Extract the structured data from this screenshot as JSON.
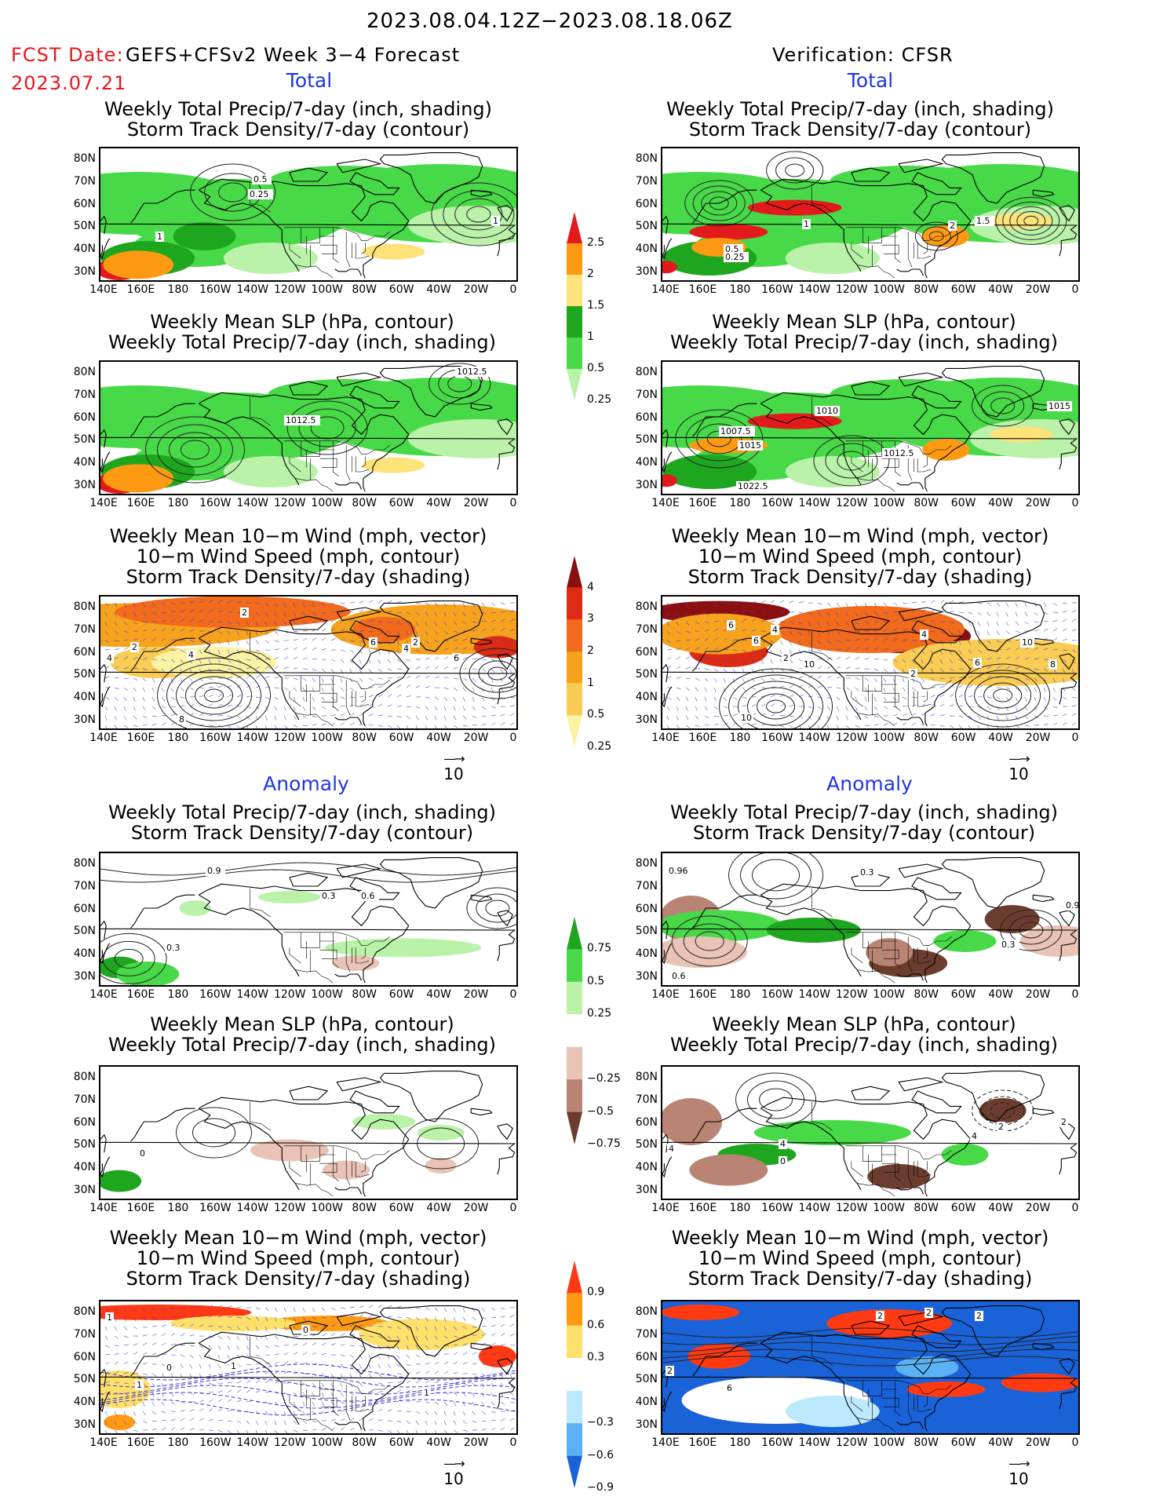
{
  "header": {
    "period": "2023.08.04.12Z−2023.08.18.06Z",
    "fcst_label": "FCST Date:",
    "fcst_date": "2023.07.21",
    "model": "GEFS+CFSv2 Week 3−4 Forecast",
    "verification": "Verification: CFSR"
  },
  "sections": {
    "total": "Total",
    "anomaly": "Anomaly"
  },
  "panel_titles": {
    "precip_storm": "Weekly Total Precip/7-day (inch, shading)\nStorm Track Density/7-day (contour)",
    "slp_precip": "Weekly Mean SLP (hPa, contour)\nWeekly Total Precip/7-day (inch, shading)",
    "wind": "Weekly Mean 10−m Wind (mph, vector)\n10−m Wind Speed (mph, contour)\nStorm Track Density/7-day (shading)"
  },
  "axes": {
    "lat_ticks": [
      "80N",
      "70N",
      "60N",
      "50N",
      "40N",
      "30N"
    ],
    "lon_ticks": [
      "140E",
      "160E",
      "180",
      "160W",
      "140W",
      "120W",
      "100W",
      "80W",
      "60W",
      "40W",
      "20W",
      "0"
    ]
  },
  "vector_ref": {
    "value": "10",
    "arrow": "—→"
  },
  "colorbars": {
    "precip_total": {
      "labels": [
        "2.5",
        "2",
        "1.5",
        "1",
        "0.5",
        "0.25"
      ],
      "colors": [
        "#e31a1c",
        "#fe9a12",
        "#fee27a",
        "#1fa61f",
        "#48d948",
        "#b9f2a8"
      ]
    },
    "storm_total": {
      "labels": [
        "4",
        "3",
        "2",
        "1",
        "0.5",
        "0.25"
      ],
      "colors": [
        "#8b0f0f",
        "#dc2b12",
        "#f26a1b",
        "#f7a21d",
        "#f9cc53",
        "#fbf2a3"
      ]
    },
    "precip_anom": {
      "labels": [
        "0.75",
        "0.5",
        "0.25",
        "−0.25",
        "−0.5",
        "−0.75"
      ],
      "colors": [
        "#1fa61f",
        "#48d948",
        "#b9f2a8",
        "#ffffff",
        "#e8c3b6",
        "#b98473",
        "#6b3d2e"
      ]
    },
    "storm_anom": {
      "labels": [
        "0.9",
        "0.6",
        "0.3",
        "−0.3",
        "−0.6",
        "−0.9"
      ],
      "colors": [
        "#ff3a13",
        "#fe9a12",
        "#fee06b",
        "#ffffff",
        "#bde9ff",
        "#5ab2f5",
        "#1a62d8"
      ]
    }
  },
  "contour_labels": {
    "f_tot_precip": [
      "0.5",
      "0.25",
      "1",
      "1"
    ],
    "v_tot_precip": [
      "1.5",
      "2",
      "0.5",
      "0.25",
      "1"
    ],
    "f_tot_slp": [
      "1012.5",
      "1012.5"
    ],
    "v_tot_slp": [
      "1010",
      "1007.5",
      "1015",
      "1015",
      "1012.5",
      "1022.5"
    ],
    "f_tot_wind": [
      "2",
      "2",
      "4",
      "4",
      "6",
      "2",
      "4",
      "6",
      "8"
    ],
    "v_tot_wind": [
      "6",
      "4",
      "6",
      "2",
      "10",
      "4",
      "6",
      "10",
      "8",
      "2",
      "10"
    ],
    "f_an_precip": [
      "0.9",
      "0.3",
      "0.6",
      "0.3"
    ],
    "v_an_precip": [
      "0.96",
      "0.3",
      "0.9",
      "0.3",
      "0.6"
    ],
    "f_an_slp": [
      "0"
    ],
    "v_an_slp": [
      "4",
      "4",
      "0",
      "2",
      "2",
      "4"
    ],
    "f_an_wind": [
      "1",
      "0",
      "0",
      "1",
      "1",
      "1"
    ],
    "v_an_wind": [
      "2",
      "2",
      "2",
      "2",
      "6"
    ]
  }
}
